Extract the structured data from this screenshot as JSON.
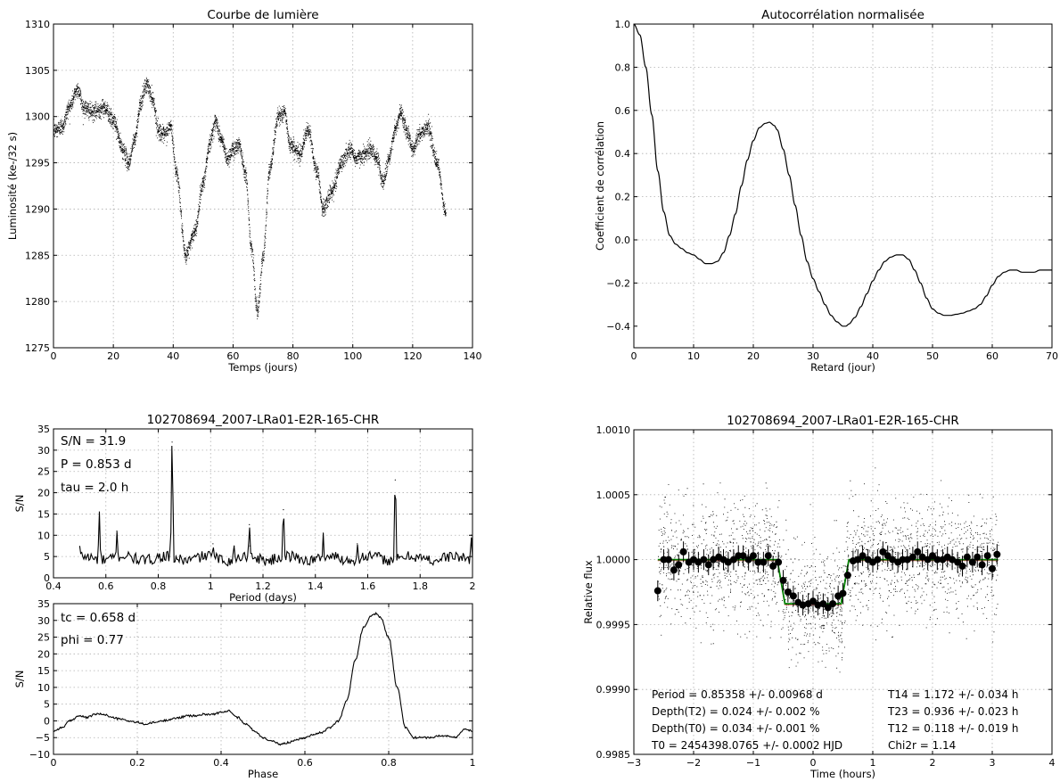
{
  "chart_data": [
    {
      "id": "lc",
      "type": "scatter",
      "title": "Courbe de lumière",
      "xlabel": "Temps (jours)",
      "ylabel": "Luminosité (ke-/32 s)",
      "xlim": [
        0,
        140
      ],
      "ylim": [
        1275,
        1310
      ],
      "xticks": [
        0,
        20,
        40,
        60,
        80,
        100,
        120,
        140
      ],
      "yticks": [
        1275,
        1280,
        1285,
        1290,
        1295,
        1300,
        1305,
        1310
      ],
      "grid": true,
      "marker_color": "#000000",
      "time_range": [
        0,
        131
      ],
      "x": [
        0,
        3,
        5,
        8,
        10,
        13,
        17,
        20,
        23,
        25,
        27,
        29,
        31,
        33,
        35,
        37,
        39,
        41,
        44,
        47,
        50,
        52,
        54,
        56,
        58,
        60,
        62,
        64,
        66,
        68,
        70,
        72,
        75,
        77,
        79,
        82,
        85,
        88,
        90,
        93,
        96,
        99,
        101,
        104,
        106,
        108,
        110,
        112,
        114,
        116,
        118,
        120,
        122,
        125,
        128,
        131
      ],
      "y": [
        1298.5,
        1299,
        1301,
        1303,
        1301,
        1300.5,
        1301,
        1299.5,
        1296.5,
        1295,
        1297.5,
        1301.5,
        1303.5,
        1302,
        1298.5,
        1298,
        1299,
        1294,
        1285,
        1287.5,
        1293,
        1297,
        1299.5,
        1297.5,
        1295.5,
        1296.5,
        1297,
        1294,
        1286,
        1279,
        1285,
        1294,
        1300,
        1300.5,
        1297,
        1296,
        1298.5,
        1294,
        1290,
        1292,
        1295,
        1296.5,
        1295.5,
        1296,
        1296.5,
        1295.5,
        1293,
        1295.5,
        1298.5,
        1300.5,
        1298.5,
        1296.5,
        1298,
        1299,
        1295,
        1289.5
      ]
    },
    {
      "id": "ac",
      "type": "line",
      "title": "Autocorrélation normalisée",
      "xlabel": "Retard (jour)",
      "ylabel": "Coefficient de corrélation",
      "xlim": [
        0,
        70
      ],
      "ylim": [
        -0.5,
        1.0
      ],
      "xticks": [
        0,
        10,
        20,
        30,
        40,
        50,
        60,
        70
      ],
      "yticks": [
        -0.4,
        -0.2,
        0.0,
        0.2,
        0.4,
        0.6,
        0.8,
        1.0
      ],
      "ytick_labels": [
        "−0.4",
        "−0.2",
        "0.0",
        "0.2",
        "0.4",
        "0.6",
        "0.8",
        "1.0"
      ],
      "grid": true,
      "line_color": "#000000",
      "x": [
        0,
        1,
        2,
        3,
        4,
        5,
        6,
        7,
        8,
        9,
        10,
        11,
        12,
        13,
        14,
        15,
        16,
        17,
        18,
        19,
        20,
        21,
        22,
        22.7,
        23.5,
        24,
        25,
        26,
        27,
        28,
        29,
        30,
        31,
        32,
        33,
        34,
        35,
        35.5,
        36,
        37,
        38,
        39,
        40,
        41,
        42,
        43,
        44,
        45,
        46,
        47,
        48,
        49,
        50,
        51,
        52,
        53,
        54,
        55,
        56,
        57,
        58,
        59,
        60,
        61,
        62,
        63,
        64,
        65,
        66,
        67,
        68,
        69,
        70
      ],
      "y": [
        1.0,
        0.95,
        0.8,
        0.58,
        0.32,
        0.13,
        0.02,
        -0.02,
        -0.04,
        -0.06,
        -0.07,
        -0.09,
        -0.11,
        -0.11,
        -0.1,
        -0.06,
        0.02,
        0.12,
        0.25,
        0.37,
        0.46,
        0.52,
        0.54,
        0.545,
        0.53,
        0.51,
        0.42,
        0.3,
        0.16,
        0.02,
        -0.1,
        -0.18,
        -0.24,
        -0.3,
        -0.35,
        -0.38,
        -0.4,
        -0.4,
        -0.39,
        -0.36,
        -0.31,
        -0.25,
        -0.19,
        -0.14,
        -0.1,
        -0.08,
        -0.07,
        -0.07,
        -0.09,
        -0.14,
        -0.2,
        -0.27,
        -0.32,
        -0.34,
        -0.35,
        -0.35,
        -0.345,
        -0.34,
        -0.33,
        -0.32,
        -0.3,
        -0.26,
        -0.21,
        -0.17,
        -0.15,
        -0.14,
        -0.14,
        -0.15,
        -0.15,
        -0.15,
        -0.14,
        -0.14,
        -0.14
      ]
    },
    {
      "id": "bls",
      "type": "line",
      "title": "102708694_2007-LRa01-E2R-165-CHR",
      "xlabel": "Period (days)",
      "ylabel": "S/N",
      "xlim": [
        0.4,
        2.0
      ],
      "ylim": [
        0,
        35
      ],
      "xticks": [
        0.4,
        0.6,
        0.8,
        1.0,
        1.2,
        1.4,
        1.6,
        1.8,
        2.0
      ],
      "yticks": [
        0,
        5,
        10,
        15,
        20,
        25,
        30,
        35
      ],
      "grid": true,
      "line_color": "#000000",
      "annotations": [
        "S/N = 31.9",
        "P = 0.853 d",
        "tau = 2.0 h"
      ],
      "baseline_range": [
        0.5,
        2.0
      ],
      "baseline_level": 4.6,
      "peaks": [
        {
          "x": 0.575,
          "y": 15.5
        },
        {
          "x": 0.642,
          "y": 11
        },
        {
          "x": 0.853,
          "y": 31.9
        },
        {
          "x": 1.009,
          "y": 8
        },
        {
          "x": 1.09,
          "y": 7.5
        },
        {
          "x": 1.15,
          "y": 7.5
        },
        {
          "x": 1.148,
          "y": 12.5
        },
        {
          "x": 1.278,
          "y": 16
        },
        {
          "x": 1.43,
          "y": 10.5
        },
        {
          "x": 1.56,
          "y": 8
        },
        {
          "x": 1.705,
          "y": 23
        },
        {
          "x": 1.995,
          "y": 10
        }
      ]
    },
    {
      "id": "phase",
      "type": "line",
      "xlabel": "Phase",
      "ylabel": "S/N",
      "xlim": [
        0.0,
        1.0
      ],
      "ylim": [
        -10,
        35
      ],
      "xticks": [
        0.0,
        0.2,
        0.4,
        0.6,
        0.8,
        1.0
      ],
      "yticks": [
        -10,
        -5,
        0,
        5,
        10,
        15,
        20,
        25,
        30,
        35
      ],
      "ytick_labels": [
        "−10",
        "−5",
        "0",
        "5",
        "10",
        "15",
        "20",
        "25",
        "30",
        "35"
      ],
      "grid": true,
      "line_color": "#000000",
      "annotations": [
        "tc = 0.658 d",
        "phi = 0.77"
      ],
      "x": [
        0.0,
        0.02,
        0.04,
        0.06,
        0.08,
        0.1,
        0.12,
        0.14,
        0.16,
        0.18,
        0.2,
        0.22,
        0.24,
        0.26,
        0.28,
        0.3,
        0.32,
        0.34,
        0.36,
        0.38,
        0.4,
        0.42,
        0.44,
        0.46,
        0.48,
        0.5,
        0.52,
        0.54,
        0.56,
        0.58,
        0.6,
        0.62,
        0.64,
        0.66,
        0.68,
        0.7,
        0.72,
        0.74,
        0.76,
        0.77,
        0.78,
        0.8,
        0.82,
        0.84,
        0.86,
        0.88,
        0.9,
        0.92,
        0.94,
        0.96,
        0.98,
        1.0
      ],
      "y": [
        -3,
        -2,
        0,
        1.5,
        1,
        2,
        2,
        1,
        0.5,
        0,
        -0.5,
        -1,
        -0.5,
        0,
        0.5,
        1,
        1.5,
        1.5,
        2,
        2,
        2.5,
        3,
        1,
        -1,
        -3,
        -5,
        -6,
        -7,
        -6.5,
        -5.5,
        -5,
        -4,
        -3.5,
        -2,
        0,
        6,
        18,
        28,
        31.5,
        32,
        31,
        25,
        10,
        -2,
        -5,
        -5,
        -5,
        -4.5,
        -4.5,
        -5,
        -2.5,
        -3
      ]
    },
    {
      "id": "fold",
      "type": "scatter",
      "title": "102708694_2007-LRa01-E2R-165-CHR",
      "xlabel": "Time (hours)",
      "ylabel": "Relative flux",
      "xlim": [
        -3,
        4
      ],
      "ylim": [
        0.9985,
        1.001
      ],
      "xticks": [
        -3,
        -2,
        -1,
        0,
        1,
        2,
        3,
        4
      ],
      "xtick_labels": [
        "−3",
        "−2",
        "−1",
        "0",
        "1",
        "2",
        "3",
        "4"
      ],
      "yticks": [
        0.9985,
        0.999,
        0.9995,
        1.0,
        1.0005,
        1.001
      ],
      "ytick_labels": [
        "0.9985",
        "0.9990",
        "0.9995",
        "1.0000",
        "1.0005",
        "1.0010"
      ],
      "grid": true,
      "model_color": "#008000",
      "model_alt_color": "#e06060",
      "marker_color": "#000000",
      "annotations_left": [
        "Period = 0.85358 +/- 0.00968 d",
        "Depth(T2) = 0.024 +/- 0.002 %",
        "Depth(T0) = 0.034 +/- 0.001 %",
        "T0 = 2454398.0765 +/- 0.0002 HJD"
      ],
      "annotations_right": [
        "T14 = 1.172 +/- 0.034 h",
        "T23 = 0.936 +/- 0.023 h",
        "T12 = 0.118 +/- 0.019 h",
        "Chi2r = 1.14"
      ],
      "model_x": [
        -2.6,
        -0.6,
        -0.47,
        0.47,
        0.6,
        3.1
      ],
      "model_y": [
        1.0,
        1.0,
        0.99966,
        0.99966,
        1.0,
        1.0
      ],
      "binned_x": [
        -2.6,
        -2.5,
        -2.42,
        -2.33,
        -2.25,
        -2.17,
        -2.08,
        -2.0,
        -1.92,
        -1.83,
        -1.75,
        -1.67,
        -1.58,
        -1.5,
        -1.42,
        -1.33,
        -1.25,
        -1.17,
        -1.08,
        -1.0,
        -0.92,
        -0.83,
        -0.75,
        -0.67,
        -0.58,
        -0.5,
        -0.42,
        -0.33,
        -0.25,
        -0.17,
        -0.08,
        0.0,
        0.08,
        0.17,
        0.25,
        0.33,
        0.42,
        0.5,
        0.58,
        0.67,
        0.75,
        0.83,
        0.92,
        1.0,
        1.08,
        1.17,
        1.25,
        1.33,
        1.42,
        1.5,
        1.58,
        1.67,
        1.75,
        1.83,
        1.92,
        2.0,
        2.08,
        2.17,
        2.25,
        2.33,
        2.42,
        2.5,
        2.58,
        2.67,
        2.75,
        2.83,
        2.92,
        3.0,
        3.08
      ],
      "binned_y": [
        0.99976,
        1.0,
        1.0,
        0.99992,
        0.99996,
        1.00006,
        0.99998,
        1.0,
        0.99998,
        1.0,
        0.99996,
        1.0,
        1.00002,
        1.0,
        0.99998,
        1.0,
        1.00003,
        1.00003,
        1.0,
        1.00003,
        0.99998,
        0.99998,
        1.00003,
        0.99995,
        0.99998,
        0.99984,
        0.99975,
        0.99972,
        0.99967,
        0.99965,
        0.99966,
        0.99968,
        0.99965,
        0.99966,
        0.99963,
        0.99966,
        0.99972,
        0.99974,
        0.99988,
        0.99999,
        1.0,
        1.00003,
        1.0,
        0.99998,
        1.0,
        1.00006,
        1.00003,
        1.0,
        0.99998,
        1.0,
        1.0,
        1.00002,
        1.00006,
        1.00002,
        1.0,
        1.00003,
        1.0,
        1.0,
        1.00002,
        1.0,
        0.99998,
        0.99995,
        1.00002,
        0.99998,
        1.00002,
        0.99996,
        1.00003,
        0.99993,
        1.00004
      ],
      "binned_err": 8e-05,
      "scatter_time_range": [
        -2.6,
        3.1
      ],
      "scatter_sigma": 0.00022,
      "scatter_count": 2200
    }
  ]
}
